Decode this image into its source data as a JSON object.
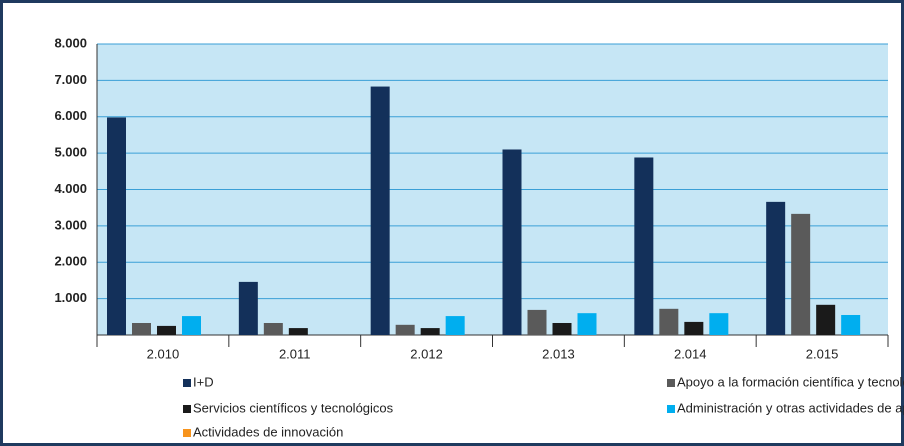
{
  "chart_data": {
    "type": "bar",
    "categories": [
      "2.010",
      "2.011",
      "2.012",
      "2.013",
      "2.014",
      "2.015"
    ],
    "series": [
      {
        "name": "I+D",
        "color": "#13305a",
        "values": [
          5980,
          1460,
          6830,
          5100,
          4880,
          3660
        ]
      },
      {
        "name": "Apoyo a la formación científica y tecnológica",
        "color": "#5a5a5a",
        "values": [
          330,
          330,
          280,
          690,
          720,
          3330
        ]
      },
      {
        "name": "Servicios científicos y tecnológicos",
        "color": "#1a1a1a",
        "values": [
          250,
          190,
          190,
          330,
          360,
          830
        ]
      },
      {
        "name": "Administración y otras actividades de apoyo",
        "color": "#00aeef",
        "values": [
          520,
          0,
          520,
          600,
          600,
          550
        ]
      },
      {
        "name": "Actividades de innovación",
        "color": "#f7941d",
        "values": [
          0,
          0,
          0,
          0,
          0,
          0
        ]
      }
    ],
    "ylim": [
      0,
      8000
    ],
    "yticks": [
      {
        "value": 1000,
        "label": "1.000"
      },
      {
        "value": 2000,
        "label": "2.000"
      },
      {
        "value": 3000,
        "label": "3.000"
      },
      {
        "value": 4000,
        "label": "4.000"
      },
      {
        "value": 5000,
        "label": "5.000"
      },
      {
        "value": 6000,
        "label": "6.000"
      },
      {
        "value": 7000,
        "label": "7.000"
      },
      {
        "value": 8000,
        "label": "8.000"
      }
    ],
    "grid": true,
    "legend": "bottom"
  }
}
